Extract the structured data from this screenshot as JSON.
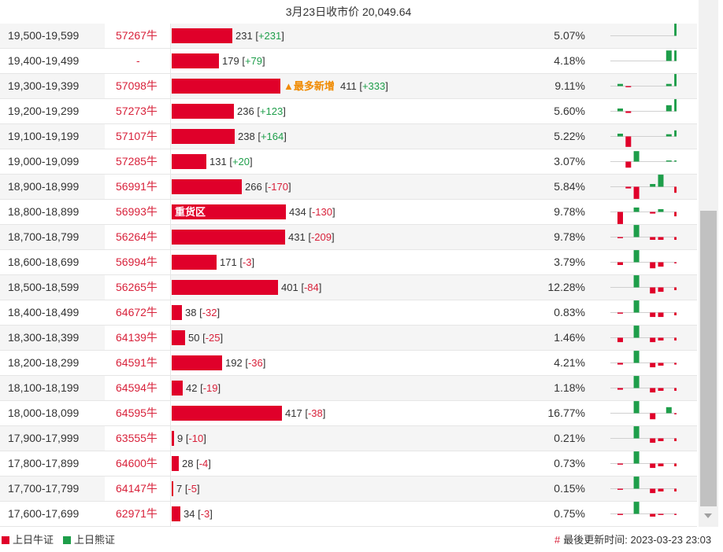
{
  "header": {
    "close_price": "3月23日收市价 20,049.64"
  },
  "colors": {
    "bull": "#e0002a",
    "bear": "#1e9e4a"
  },
  "rows": [
    {
      "range": "19,500-19,599",
      "code": "57267牛",
      "count": "231",
      "change": "+231",
      "pct": "5.07%",
      "bar": 0.172,
      "mini": [
        0,
        0,
        0,
        0,
        0,
        0,
        0,
        2.2
      ]
    },
    {
      "range": "19,400-19,499",
      "code": "-",
      "count": "179",
      "change": "+79",
      "pct": "4.18%",
      "bar": 0.133,
      "mini": [
        0,
        0,
        0,
        0,
        0,
        0,
        1.9,
        1.9
      ]
    },
    {
      "range": "19,300-19,399",
      "code": "57098牛",
      "tag": "▲最多新增",
      "count": "411",
      "change": "+333",
      "pct": "9.11%",
      "bar": 0.306,
      "mini": [
        0.4,
        -0.2,
        0,
        0,
        0,
        0,
        0.4,
        2.2
      ]
    },
    {
      "range": "19,200-19,299",
      "code": "57273牛",
      "count": "236",
      "change": "+123",
      "pct": "5.60%",
      "bar": 0.176,
      "mini": [
        0.5,
        -0.3,
        0,
        0,
        0,
        0,
        1.1,
        2.2
      ]
    },
    {
      "range": "19,100-19,199",
      "code": "57107牛",
      "count": "238",
      "change": "+164",
      "pct": "5.22%",
      "bar": 0.177,
      "mini": [
        0.5,
        -1.9,
        0,
        0,
        0,
        0,
        0.4,
        1.1
      ]
    },
    {
      "range": "19,000-19,099",
      "code": "57285牛",
      "count": "131",
      "change": "+20",
      "pct": "3.07%",
      "bar": 0.098,
      "mini": [
        0,
        -1.1,
        1.9,
        0,
        0,
        0,
        0.2,
        0.2
      ]
    },
    {
      "range": "18,900-18,999",
      "code": "56991牛",
      "count": "266",
      "change": "-170",
      "pct": "5.84%",
      "bar": 0.198,
      "mini": [
        0,
        -0.3,
        -2.2,
        0,
        0.5,
        2.2,
        0,
        -1.1
      ]
    },
    {
      "range": "18,800-18,899",
      "code": "56993牛",
      "label": "重货区",
      "count": "434",
      "change": "-130",
      "pct": "9.78%",
      "bar": 0.323,
      "mini": [
        -2.2,
        0,
        0.8,
        0,
        -0.3,
        0.5,
        0,
        -0.8
      ]
    },
    {
      "range": "18,700-18,799",
      "code": "56264牛",
      "count": "431",
      "change": "-209",
      "pct": "9.78%",
      "bar": 0.321,
      "mini": [
        -0.2,
        0,
        2.2,
        0,
        -0.5,
        -0.5,
        0,
        -0.5
      ]
    },
    {
      "range": "18,600-18,699",
      "code": "56994牛",
      "count": "171",
      "change": "-3",
      "pct": "3.79%",
      "bar": 0.127,
      "mini": [
        -0.5,
        0,
        2.2,
        0,
        -1.1,
        -0.8,
        0,
        -0.2
      ]
    },
    {
      "range": "18,500-18,599",
      "code": "56265牛",
      "count": "401",
      "change": "-84",
      "pct": "12.28%",
      "bar": 0.299,
      "mini": [
        0,
        0,
        2.2,
        0,
        -1.1,
        -0.8,
        0,
        -0.5
      ]
    },
    {
      "range": "18,400-18,499",
      "code": "64672牛",
      "count": "38",
      "change": "-32",
      "pct": "0.83%",
      "bar": 0.028,
      "mini": [
        -0.2,
        0,
        2.2,
        0,
        -0.8,
        -0.8,
        0,
        -0.5
      ]
    },
    {
      "range": "18,300-18,399",
      "code": "64139牛",
      "count": "50",
      "change": "-25",
      "pct": "1.46%",
      "bar": 0.037,
      "mini": [
        -0.8,
        0,
        2.2,
        0,
        -0.8,
        -0.5,
        0,
        -0.5
      ]
    },
    {
      "range": "18,200-18,299",
      "code": "64591牛",
      "count": "192",
      "change": "-36",
      "pct": "4.21%",
      "bar": 0.143,
      "mini": [
        -0.3,
        0,
        2.2,
        0,
        -0.8,
        -0.5,
        0,
        -0.3
      ]
    },
    {
      "range": "18,100-18,199",
      "code": "64594牛",
      "count": "42",
      "change": "-19",
      "pct": "1.18%",
      "bar": 0.031,
      "mini": [
        -0.3,
        0,
        2.2,
        0,
        -0.8,
        -0.5,
        0,
        -0.5
      ]
    },
    {
      "range": "18,000-18,099",
      "code": "64595牛",
      "count": "417",
      "change": "-38",
      "pct": "16.77%",
      "bar": 0.311,
      "mini": [
        0,
        0,
        2.2,
        0,
        -1.1,
        0,
        1.1,
        -0.2
      ]
    },
    {
      "range": "17,900-17,999",
      "code": "63555牛",
      "count": "9",
      "change": "-10",
      "pct": "0.21%",
      "bar": 0.007,
      "mini": [
        0,
        0,
        2.2,
        0,
        -0.8,
        -0.5,
        0,
        -0.5
      ]
    },
    {
      "range": "17,800-17,899",
      "code": "64600牛",
      "count": "28",
      "change": "-4",
      "pct": "0.73%",
      "bar": 0.021,
      "mini": [
        -0.2,
        0,
        2.2,
        0,
        -0.8,
        -0.5,
        0,
        -0.5
      ]
    },
    {
      "range": "17,700-17,799",
      "code": "64147牛",
      "count": "7",
      "change": "-5",
      "pct": "0.15%",
      "bar": 0.005,
      "mini": [
        -0.2,
        0,
        2.2,
        0,
        -0.8,
        -0.5,
        0,
        -0.5
      ]
    },
    {
      "range": "17,600-17,699",
      "code": "62971牛",
      "count": "34",
      "change": "-3",
      "pct": "0.75%",
      "bar": 0.025,
      "mini": [
        -0.2,
        0,
        2.2,
        0,
        -0.5,
        -0.2,
        0,
        -0.2
      ]
    }
  ],
  "footer": {
    "legend_bull": "上日牛证",
    "legend_bear": "上日熊证",
    "updated_prefix": "最後更新时间:",
    "updated_time": "2023-03-23 23:03"
  }
}
